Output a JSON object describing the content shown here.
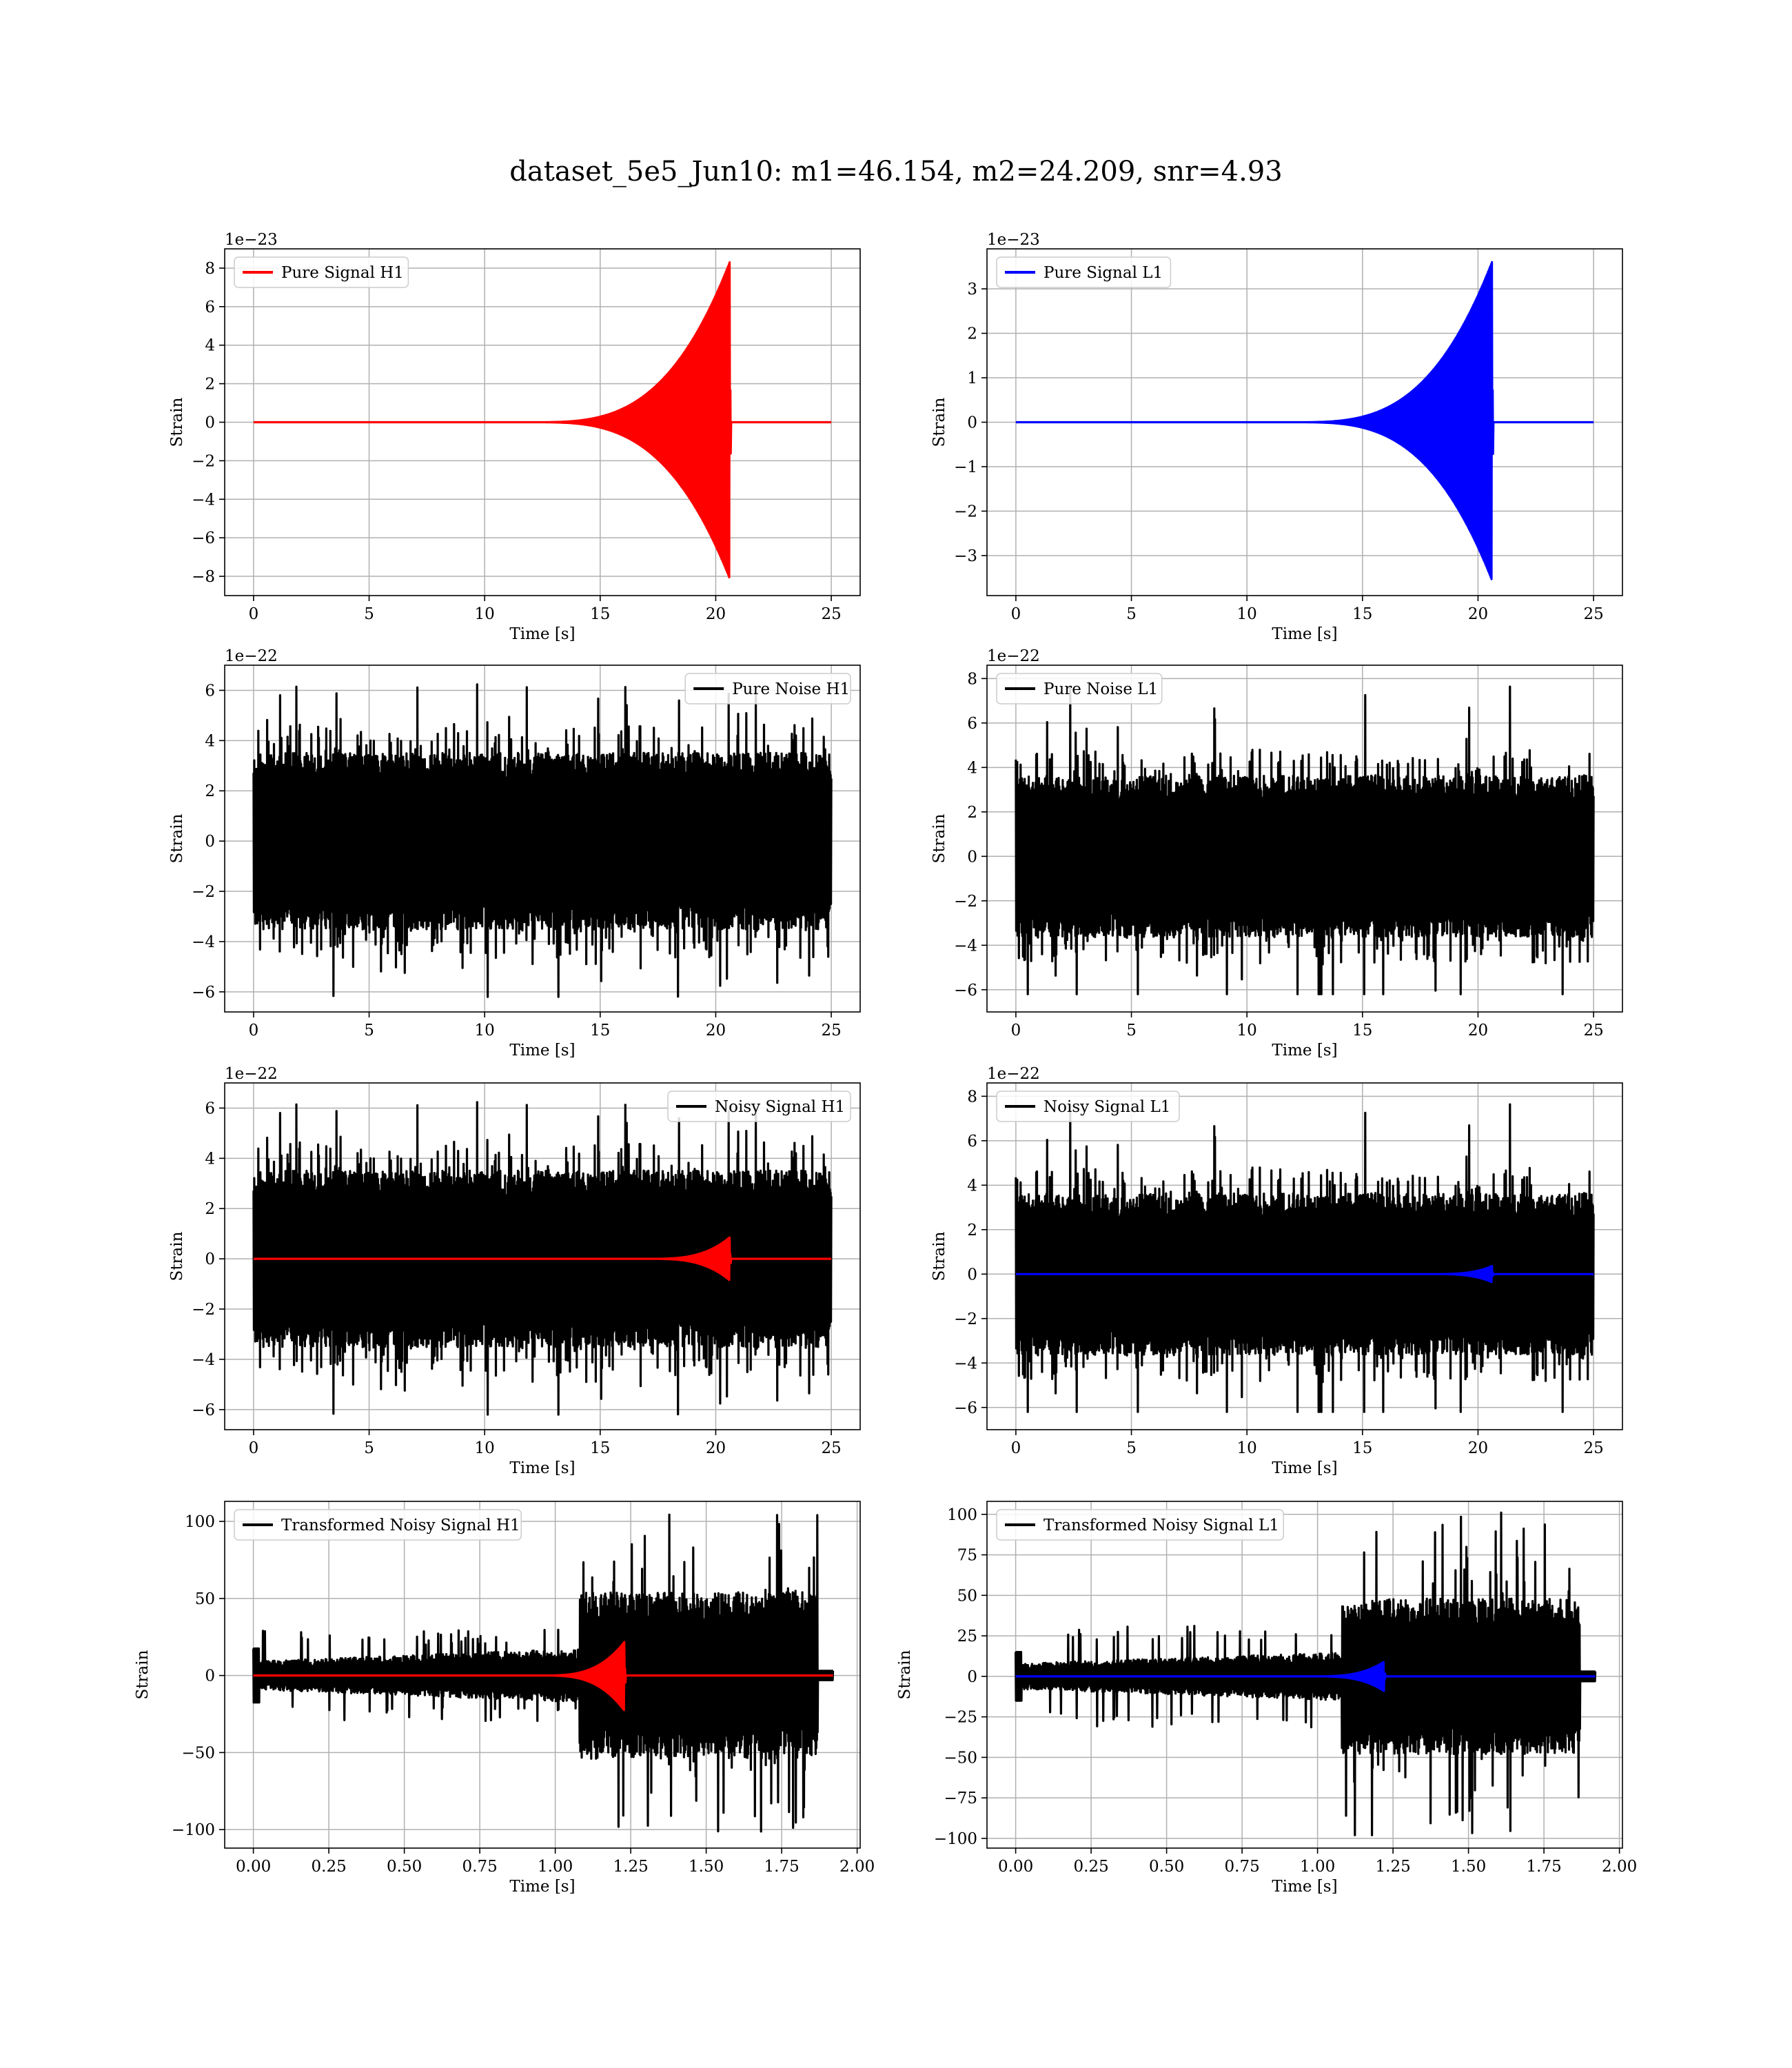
{
  "figure": {
    "title": "dataset_5e5_Jun10: m1=46.154, m2=24.209, snr=4.93"
  },
  "colors": {
    "h1_signal": "#ff0000",
    "l1_signal": "#0000ff",
    "noise": "#000000",
    "grid": "#b0b0b0"
  },
  "chart_data": [
    {
      "type": "line",
      "panel": "pure-signal-h1",
      "xlabel": "Time [s]",
      "ylabel": "Strain",
      "offset_text": "1e−23",
      "xlim": [
        -1.25,
        26.25
      ],
      "ylim": [
        -9,
        9
      ],
      "xticks": [
        0,
        5,
        10,
        15,
        20,
        25
      ],
      "xtick_labels": [
        "0",
        "5",
        "10",
        "15",
        "20",
        "25"
      ],
      "yticks": [
        -8,
        -6,
        -4,
        -2,
        0,
        2,
        4,
        6,
        8
      ],
      "ytick_labels": [
        "−8",
        "−6",
        "−4",
        "−2",
        "0",
        "2",
        "4",
        "6",
        "8"
      ],
      "legend": {
        "position": "upper-left"
      },
      "grid": true,
      "series": [
        {
          "name": "Pure Signal H1",
          "color": "#ff0000",
          "kind": "chirp",
          "x_start": 0,
          "x_end": 25,
          "merger": 20.6,
          "peak_pos": 8.3,
          "peak_neg": -8.1,
          "onset": 12
        }
      ]
    },
    {
      "type": "line",
      "panel": "pure-signal-l1",
      "xlabel": "Time [s]",
      "ylabel": "Strain",
      "offset_text": "1e−23",
      "xlim": [
        -1.25,
        26.25
      ],
      "ylim": [
        -3.9,
        3.9
      ],
      "xticks": [
        0,
        5,
        10,
        15,
        20,
        25
      ],
      "xtick_labels": [
        "0",
        "5",
        "10",
        "15",
        "20",
        "25"
      ],
      "yticks": [
        -3,
        -2,
        -1,
        0,
        1,
        2,
        3
      ],
      "ytick_labels": [
        "−3",
        "−2",
        "−1",
        "0",
        "1",
        "2",
        "3"
      ],
      "legend": {
        "position": "upper-left"
      },
      "grid": true,
      "series": [
        {
          "name": "Pure Signal L1",
          "color": "#0000ff",
          "kind": "chirp",
          "x_start": 0,
          "x_end": 25,
          "merger": 20.6,
          "peak_pos": 3.6,
          "peak_neg": -3.55,
          "onset": 12
        }
      ]
    },
    {
      "type": "line",
      "panel": "pure-noise-h1",
      "xlabel": "Time [s]",
      "ylabel": "Strain",
      "offset_text": "1e−22",
      "xlim": [
        -1.25,
        26.25
      ],
      "ylim": [
        -6.8,
        7.0
      ],
      "xticks": [
        0,
        5,
        10,
        15,
        20,
        25
      ],
      "xtick_labels": [
        "0",
        "5",
        "10",
        "15",
        "20",
        "25"
      ],
      "yticks": [
        -6,
        -4,
        -2,
        0,
        2,
        4,
        6
      ],
      "ytick_labels": [
        "−6",
        "−4",
        "−2",
        "0",
        "2",
        "4",
        "6"
      ],
      "legend": {
        "position": "upper-right"
      },
      "grid": true,
      "series": [
        {
          "name": "Pure Noise H1",
          "color": "#000000",
          "kind": "noise",
          "x_start": 0,
          "x_end": 25,
          "band": 3.0,
          "max": 6.3,
          "min": -6.2,
          "seed": 11
        }
      ]
    },
    {
      "type": "line",
      "panel": "pure-noise-l1",
      "xlabel": "Time [s]",
      "ylabel": "Strain",
      "offset_text": "1e−22",
      "xlim": [
        -1.25,
        26.25
      ],
      "ylim": [
        -7.0,
        8.6
      ],
      "xticks": [
        0,
        5,
        10,
        15,
        20,
        25
      ],
      "xtick_labels": [
        "0",
        "5",
        "10",
        "15",
        "20",
        "25"
      ],
      "yticks": [
        -6,
        -4,
        -2,
        0,
        2,
        4,
        6,
        8
      ],
      "ytick_labels": [
        "−6",
        "−4",
        "−2",
        "0",
        "2",
        "4",
        "6",
        "8"
      ],
      "legend": {
        "position": "upper-left"
      },
      "grid": true,
      "series": [
        {
          "name": "Pure Noise L1",
          "color": "#000000",
          "kind": "noise",
          "x_start": 0,
          "x_end": 25,
          "band": 3.1,
          "max": 7.8,
          "min": -6.2,
          "seed": 29
        }
      ]
    },
    {
      "type": "line",
      "panel": "noisy-signal-h1",
      "xlabel": "Time [s]",
      "ylabel": "Strain",
      "offset_text": "1e−22",
      "xlim": [
        -1.25,
        26.25
      ],
      "ylim": [
        -6.8,
        7.0
      ],
      "xticks": [
        0,
        5,
        10,
        15,
        20,
        25
      ],
      "xtick_labels": [
        "0",
        "5",
        "10",
        "15",
        "20",
        "25"
      ],
      "yticks": [
        -6,
        -4,
        -2,
        0,
        2,
        4,
        6
      ],
      "ytick_labels": [
        "−6",
        "−4",
        "−2",
        "0",
        "2",
        "4",
        "6"
      ],
      "legend": {
        "position": "upper-right"
      },
      "grid": true,
      "series": [
        {
          "name": "Noisy Signal H1",
          "color": "#000000",
          "kind": "noise",
          "x_start": 0,
          "x_end": 25,
          "band": 3.0,
          "max": 6.3,
          "min": -6.2,
          "seed": 11
        },
        {
          "name": "",
          "color": "#ff0000",
          "kind": "chirp",
          "x_start": 0,
          "x_end": 25,
          "merger": 20.6,
          "peak_pos": 0.85,
          "peak_neg": -0.85,
          "onset": 17
        }
      ]
    },
    {
      "type": "line",
      "panel": "noisy-signal-l1",
      "xlabel": "Time [s]",
      "ylabel": "Strain",
      "offset_text": "1e−22",
      "xlim": [
        -1.25,
        26.25
      ],
      "ylim": [
        -7.0,
        8.6
      ],
      "xticks": [
        0,
        5,
        10,
        15,
        20,
        25
      ],
      "xtick_labels": [
        "0",
        "5",
        "10",
        "15",
        "20",
        "25"
      ],
      "yticks": [
        -6,
        -4,
        -2,
        0,
        2,
        4,
        6,
        8
      ],
      "ytick_labels": [
        "−6",
        "−4",
        "−2",
        "0",
        "2",
        "4",
        "6",
        "8"
      ],
      "legend": {
        "position": "upper-left"
      },
      "grid": true,
      "series": [
        {
          "name": "Noisy Signal L1",
          "color": "#000000",
          "kind": "noise",
          "x_start": 0,
          "x_end": 25,
          "band": 3.1,
          "max": 7.8,
          "min": -6.2,
          "seed": 29
        },
        {
          "name": "",
          "color": "#0000ff",
          "kind": "chirp",
          "x_start": 0,
          "x_end": 25,
          "merger": 20.6,
          "peak_pos": 0.36,
          "peak_neg": -0.36,
          "onset": 18
        }
      ]
    },
    {
      "type": "line",
      "panel": "transformed-noisy-signal-h1",
      "xlabel": "Time [s]",
      "ylabel": "Strain",
      "offset_text": "",
      "xlim": [
        -0.095,
        2.01
      ],
      "ylim": [
        -112,
        113
      ],
      "xticks": [
        0,
        0.25,
        0.5,
        0.75,
        1.0,
        1.25,
        1.5,
        1.75,
        2.0
      ],
      "xtick_labels": [
        "0.00",
        "0.25",
        "0.50",
        "0.75",
        "1.00",
        "1.25",
        "1.50",
        "1.75",
        "2.00"
      ],
      "yticks": [
        -100,
        -50,
        0,
        50,
        100
      ],
      "ytick_labels": [
        "−100",
        "−50",
        "0",
        "50",
        "100"
      ],
      "legend": {
        "position": "upper-left"
      },
      "grid": true,
      "series": [
        {
          "name": "Transformed Noisy Signal H1",
          "color": "#000000",
          "kind": "whitened",
          "x_start": 0,
          "x_end": 1.92,
          "low_band": 7,
          "low_max": 20,
          "high_start": 1.08,
          "cut": 1.87,
          "high_band": 45,
          "max": 105,
          "min": -102,
          "seed": 47
        },
        {
          "name": "",
          "color": "#ff0000",
          "kind": "chirp",
          "x_start": 0,
          "x_end": 1.92,
          "merger": 1.23,
          "peak_pos": 22,
          "peak_neg": -23,
          "onset": 0.95
        }
      ]
    },
    {
      "type": "line",
      "panel": "transformed-noisy-signal-l1",
      "xlabel": "Time [s]",
      "ylabel": "Strain",
      "offset_text": "",
      "xlim": [
        -0.095,
        2.01
      ],
      "ylim": [
        -106,
        108
      ],
      "xticks": [
        0,
        0.25,
        0.5,
        0.75,
        1.0,
        1.25,
        1.5,
        1.75,
        2.0
      ],
      "xtick_labels": [
        "0.00",
        "0.25",
        "0.50",
        "0.75",
        "1.00",
        "1.25",
        "1.50",
        "1.75",
        "2.00"
      ],
      "yticks": [
        -100,
        -75,
        -50,
        -25,
        0,
        25,
        50,
        75,
        100
      ],
      "ytick_labels": [
        "−100",
        "−75",
        "−50",
        "−25",
        "0",
        "25",
        "50",
        "75",
        "100"
      ],
      "legend": {
        "position": "upper-left"
      },
      "grid": true,
      "series": [
        {
          "name": "Transformed Noisy Signal L1",
          "color": "#000000",
          "kind": "whitened",
          "x_start": 0,
          "x_end": 1.92,
          "low_band": 6,
          "low_max": 22,
          "high_start": 1.08,
          "cut": 1.87,
          "high_band": 40,
          "max": 103,
          "min": -98,
          "seed": 83
        },
        {
          "name": "",
          "color": "#0000ff",
          "kind": "chirp",
          "x_start": 0,
          "x_end": 1.92,
          "merger": 1.22,
          "peak_pos": 9,
          "peak_neg": -9,
          "onset": 0.98
        }
      ]
    }
  ]
}
